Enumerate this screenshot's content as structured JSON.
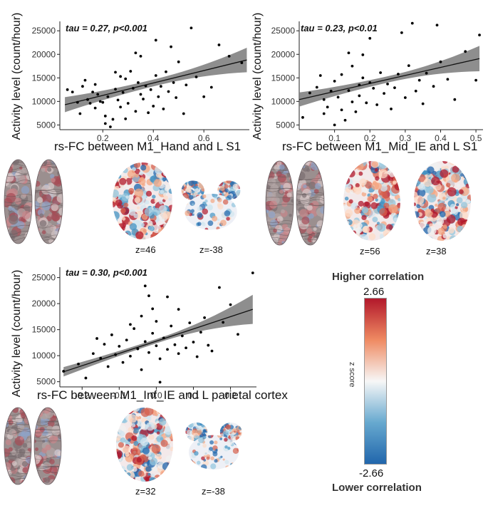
{
  "chart_data": [
    {
      "id": "plot1",
      "type": "scatter",
      "annotation": "tau = 0.27, p<0.001",
      "xlabel": "rs-FC between M1_Hand and L S1",
      "ylabel": "Activity level (count/hour)",
      "xlim": [
        0.03,
        0.78
      ],
      "ylim": [
        4000,
        27000
      ],
      "xticks": [
        0.2,
        0.4,
        0.6
      ],
      "xticklabels": [
        "0.2",
        "0.4",
        "0.6"
      ],
      "yticks": [
        5000,
        10000,
        15000,
        20000,
        25000
      ],
      "yticklabels": [
        "5000",
        "10000",
        "15000",
        "20000",
        "25000"
      ],
      "fit": {
        "x": [
          0.05,
          0.77
        ],
        "y": [
          9300,
          18800
        ],
        "ci": [
          1600,
          2600
        ]
      },
      "points": [
        [
          0.06,
          12500
        ],
        [
          0.08,
          12000
        ],
        [
          0.1,
          9800
        ],
        [
          0.11,
          7400
        ],
        [
          0.12,
          13200
        ],
        [
          0.13,
          14500
        ],
        [
          0.14,
          10400
        ],
        [
          0.15,
          9600
        ],
        [
          0.16,
          12000
        ],
        [
          0.17,
          8600
        ],
        [
          0.18,
          11500
        ],
        [
          0.19,
          10000
        ],
        [
          0.2,
          9800
        ],
        [
          0.21,
          6900
        ],
        [
          0.21,
          5300
        ],
        [
          0.22,
          11000
        ],
        [
          0.23,
          4600
        ],
        [
          0.24,
          6200
        ],
        [
          0.25,
          12600
        ],
        [
          0.26,
          10300
        ],
        [
          0.27,
          15300
        ],
        [
          0.27,
          8800
        ],
        [
          0.28,
          11900
        ],
        [
          0.29,
          14800
        ],
        [
          0.29,
          6300
        ],
        [
          0.3,
          9600
        ],
        [
          0.31,
          16400
        ],
        [
          0.32,
          12800
        ],
        [
          0.33,
          7900
        ],
        [
          0.34,
          14000
        ],
        [
          0.35,
          11500
        ],
        [
          0.35,
          19600
        ],
        [
          0.36,
          10500
        ],
        [
          0.37,
          13300
        ],
        [
          0.38,
          7600
        ],
        [
          0.39,
          12500
        ],
        [
          0.4,
          9000
        ],
        [
          0.41,
          15500
        ],
        [
          0.42,
          11000
        ],
        [
          0.43,
          13200
        ],
        [
          0.44,
          8400
        ],
        [
          0.45,
          16300
        ],
        [
          0.46,
          12100
        ],
        [
          0.47,
          21600
        ],
        [
          0.48,
          14000
        ],
        [
          0.49,
          10800
        ],
        [
          0.5,
          18400
        ],
        [
          0.52,
          7400
        ],
        [
          0.53,
          13500
        ],
        [
          0.55,
          25600
        ],
        [
          0.57,
          15200
        ],
        [
          0.6,
          11000
        ],
        [
          0.63,
          13000
        ],
        [
          0.66,
          22000
        ],
        [
          0.7,
          19600
        ],
        [
          0.75,
          18200
        ],
        [
          0.17,
          13600
        ],
        [
          0.33,
          20300
        ],
        [
          0.41,
          23000
        ],
        [
          0.25,
          16200
        ]
      ]
    },
    {
      "id": "plot2",
      "type": "scatter",
      "annotation": "tau = 0.23, p<0.01",
      "xlabel": "rs-FC between M1_Mid_IE and L S1",
      "ylabel": "Activity level (count/hour)",
      "xlim": [
        0.0,
        0.52
      ],
      "ylim": [
        4000,
        27000
      ],
      "xticks": [
        0.1,
        0.2,
        0.3,
        0.4,
        0.5
      ],
      "xticklabels": [
        "0.1",
        "0.2",
        "0.3",
        "0.4",
        "0.5"
      ],
      "yticks": [
        5000,
        10000,
        15000,
        20000,
        25000
      ],
      "yticklabels": [
        "5000",
        "10000",
        "15000",
        "20000",
        "25000"
      ],
      "fit": {
        "x": [
          0.0,
          0.51
        ],
        "y": [
          10400,
          19100
        ],
        "ci": [
          1500,
          2700
        ]
      },
      "points": [
        [
          0.01,
          6600
        ],
        [
          0.03,
          11800
        ],
        [
          0.05,
          13000
        ],
        [
          0.06,
          15500
        ],
        [
          0.07,
          10400
        ],
        [
          0.08,
          8800
        ],
        [
          0.09,
          12200
        ],
        [
          0.1,
          14300
        ],
        [
          0.1,
          5000
        ],
        [
          0.11,
          10900
        ],
        [
          0.12,
          8200
        ],
        [
          0.12,
          15700
        ],
        [
          0.13,
          6000
        ],
        [
          0.14,
          12300
        ],
        [
          0.15,
          9900
        ],
        [
          0.15,
          17500
        ],
        [
          0.16,
          7800
        ],
        [
          0.17,
          13500
        ],
        [
          0.17,
          11200
        ],
        [
          0.18,
          19900
        ],
        [
          0.18,
          15000
        ],
        [
          0.19,
          9700
        ],
        [
          0.2,
          14000
        ],
        [
          0.2,
          23400
        ],
        [
          0.21,
          12800
        ],
        [
          0.22,
          9300
        ],
        [
          0.23,
          16100
        ],
        [
          0.24,
          11700
        ],
        [
          0.25,
          13700
        ],
        [
          0.26,
          8400
        ],
        [
          0.27,
          12900
        ],
        [
          0.28,
          15800
        ],
        [
          0.29,
          24600
        ],
        [
          0.3,
          10800
        ],
        [
          0.31,
          17600
        ],
        [
          0.32,
          26600
        ],
        [
          0.33,
          12200
        ],
        [
          0.34,
          14500
        ],
        [
          0.35,
          9500
        ],
        [
          0.36,
          16000
        ],
        [
          0.38,
          13200
        ],
        [
          0.39,
          26200
        ],
        [
          0.4,
          18400
        ],
        [
          0.42,
          14700
        ],
        [
          0.44,
          10400
        ],
        [
          0.47,
          20600
        ],
        [
          0.5,
          14500
        ],
        [
          0.51,
          24100
        ],
        [
          0.07,
          7400
        ],
        [
          0.14,
          20300
        ]
      ]
    },
    {
      "id": "plot3",
      "type": "scatter",
      "annotation": "tau = 0.30, p<0.001",
      "xlabel": "rs-FC between M1_Inf_IE and L parietal cortex",
      "ylabel": "Activity level (count/hour)",
      "xlim": [
        -0.26,
        0.27
      ],
      "ylim": [
        4000,
        27000
      ],
      "xticks": [
        -0.2,
        -0.1,
        0.0,
        0.1,
        0.2
      ],
      "xticklabels": [
        "-0.2",
        "-0.1",
        "0.0",
        "0.1",
        "0.2"
      ],
      "yticks": [
        5000,
        10000,
        15000,
        20000,
        25000
      ],
      "yticklabels": [
        "5000",
        "10000",
        "15000",
        "20000",
        "25000"
      ],
      "fit": {
        "x": [
          -0.25,
          0.26
        ],
        "y": [
          6900,
          18900
        ],
        "ci": [
          900,
          2800
        ]
      },
      "points": [
        [
          -0.25,
          7000
        ],
        [
          -0.21,
          8400
        ],
        [
          -0.19,
          5700
        ],
        [
          -0.17,
          10400
        ],
        [
          -0.16,
          13300
        ],
        [
          -0.15,
          9500
        ],
        [
          -0.14,
          12200
        ],
        [
          -0.13,
          7900
        ],
        [
          -0.12,
          14000
        ],
        [
          -0.11,
          10200
        ],
        [
          -0.1,
          11800
        ],
        [
          -0.09,
          8700
        ],
        [
          -0.08,
          13000
        ],
        [
          -0.07,
          9900
        ],
        [
          -0.06,
          15200
        ],
        [
          -0.05,
          11300
        ],
        [
          -0.04,
          17600
        ],
        [
          -0.04,
          7300
        ],
        [
          -0.03,
          12700
        ],
        [
          -0.03,
          23400
        ],
        [
          -0.02,
          21500
        ],
        [
          -0.02,
          10600
        ],
        [
          -0.01,
          14300
        ],
        [
          0.0,
          11900
        ],
        [
          0.0,
          16600
        ],
        [
          0.01,
          9400
        ],
        [
          0.01,
          4900
        ],
        [
          0.02,
          13400
        ],
        [
          0.03,
          11200
        ],
        [
          0.04,
          15700
        ],
        [
          0.05,
          12100
        ],
        [
          0.06,
          18900
        ],
        [
          0.06,
          10400
        ],
        [
          0.07,
          13800
        ],
        [
          0.08,
          11500
        ],
        [
          0.09,
          16300
        ],
        [
          0.1,
          12600
        ],
        [
          0.11,
          9800
        ],
        [
          0.12,
          14500
        ],
        [
          0.13,
          17300
        ],
        [
          0.14,
          12000
        ],
        [
          0.15,
          10900
        ],
        [
          0.17,
          23100
        ],
        [
          0.18,
          16400
        ],
        [
          0.2,
          19800
        ],
        [
          0.22,
          14100
        ],
        [
          0.26,
          25900
        ],
        [
          -0.07,
          16000
        ],
        [
          0.03,
          21300
        ],
        [
          -0.01,
          19000
        ]
      ]
    }
  ],
  "brains": [
    {
      "id": "b1",
      "slices": [
        {
          "label": "z=46"
        },
        {
          "label": "z=-38"
        }
      ]
    },
    {
      "id": "b2",
      "slices": [
        {
          "label": "z=56"
        },
        {
          "label": "z=38"
        }
      ]
    },
    {
      "id": "b3",
      "slices": [
        {
          "label": "z=32"
        },
        {
          "label": "z=-38"
        }
      ]
    }
  ],
  "colorbar": {
    "top_title": "Higher correlation",
    "max_label": "2.66",
    "axis_label": "z score",
    "min_label": "-2.66",
    "bottom_title": "Lower correlation",
    "colors": [
      "#b2182b",
      "#ef8a62",
      "#f7f7f7",
      "#67a9cf",
      "#2166ac"
    ]
  }
}
